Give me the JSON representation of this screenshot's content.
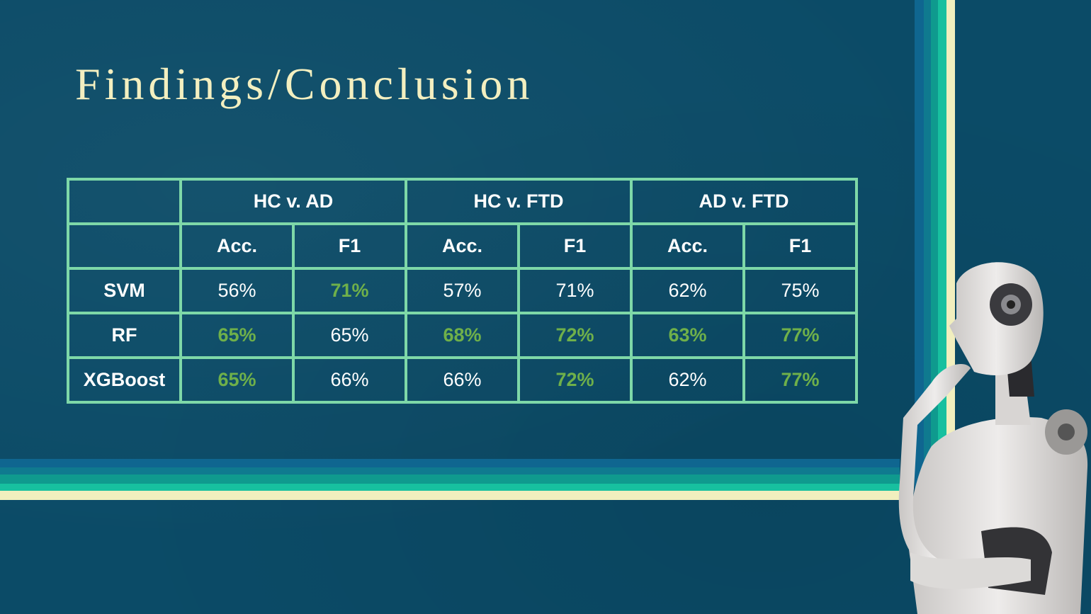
{
  "title": "Findings/Conclusion",
  "colors": {
    "background": "#0b4b67",
    "table_border": "#7ed8a8",
    "highlight": "#6fb04a",
    "title": "#f3efc0"
  },
  "table": {
    "group_headers": [
      "HC v. AD",
      "HC v. FTD",
      "AD v. FTD"
    ],
    "sub_headers": [
      "Acc.",
      "F1",
      "Acc.",
      "F1",
      "Acc.",
      "F1"
    ],
    "rows": [
      {
        "model": "SVM",
        "values": [
          "56%",
          "71%",
          "57%",
          "71%",
          "62%",
          "75%"
        ],
        "highlighted": [
          false,
          true,
          false,
          false,
          false,
          false
        ]
      },
      {
        "model": "RF",
        "values": [
          "65%",
          "65%",
          "68%",
          "72%",
          "63%",
          "77%"
        ],
        "highlighted": [
          true,
          false,
          true,
          true,
          true,
          true
        ]
      },
      {
        "model": "XGBoost",
        "values": [
          "65%",
          "66%",
          "66%",
          "72%",
          "62%",
          "77%"
        ],
        "highlighted": [
          true,
          false,
          false,
          true,
          false,
          true
        ]
      }
    ]
  }
}
